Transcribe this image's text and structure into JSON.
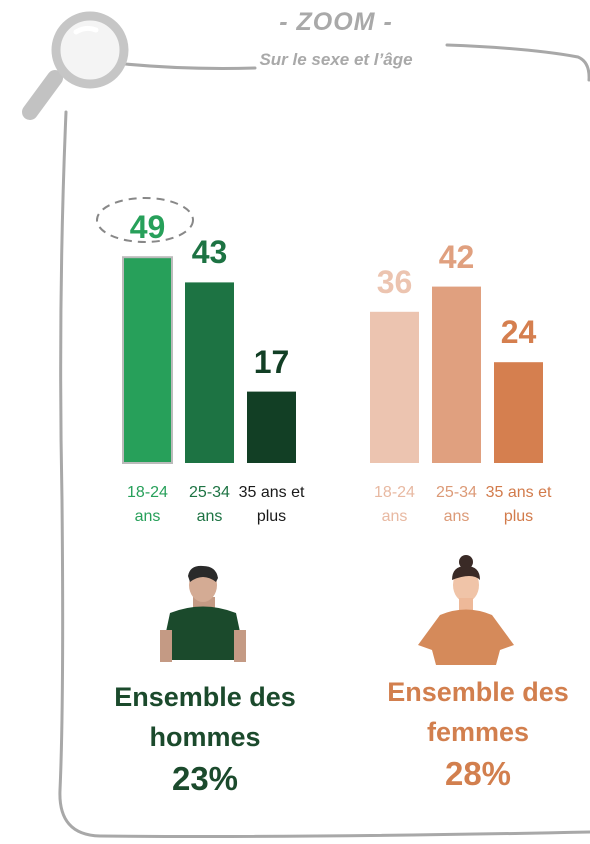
{
  "header": {
    "title": "- ZOOM -",
    "subtitle": "Sur le sexe et l’âge"
  },
  "chart_data": [
    {
      "type": "bar",
      "categories": [
        "18-24 ans",
        "25-34 ans",
        "35 ans et plus"
      ],
      "values": [
        49,
        43,
        17
      ],
      "colors": [
        "#27a05a",
        "#1d7343",
        "#123f25"
      ],
      "label_colors": [
        "#27a05a",
        "#1d7343",
        "#1a1a1a"
      ],
      "summary": {
        "label": "Ensemble des hommes",
        "value": 23,
        "value_label": "23%",
        "color": "#1b4a2c"
      }
    },
    {
      "type": "bar",
      "categories": [
        "18-24 ans",
        "25-34 ans",
        "35 ans et plus"
      ],
      "values": [
        36,
        42,
        24
      ],
      "colors": [
        "#ecc4b0",
        "#e0a07f",
        "#d57f4f"
      ],
      "label_colors": [
        "#e8b9a2",
        "#dc9a77",
        "#d27b4b"
      ],
      "summary": {
        "label": "Ensemble des femmes",
        "value": 28,
        "value_label": "28%",
        "color": "#d27f4e"
      }
    }
  ]
}
